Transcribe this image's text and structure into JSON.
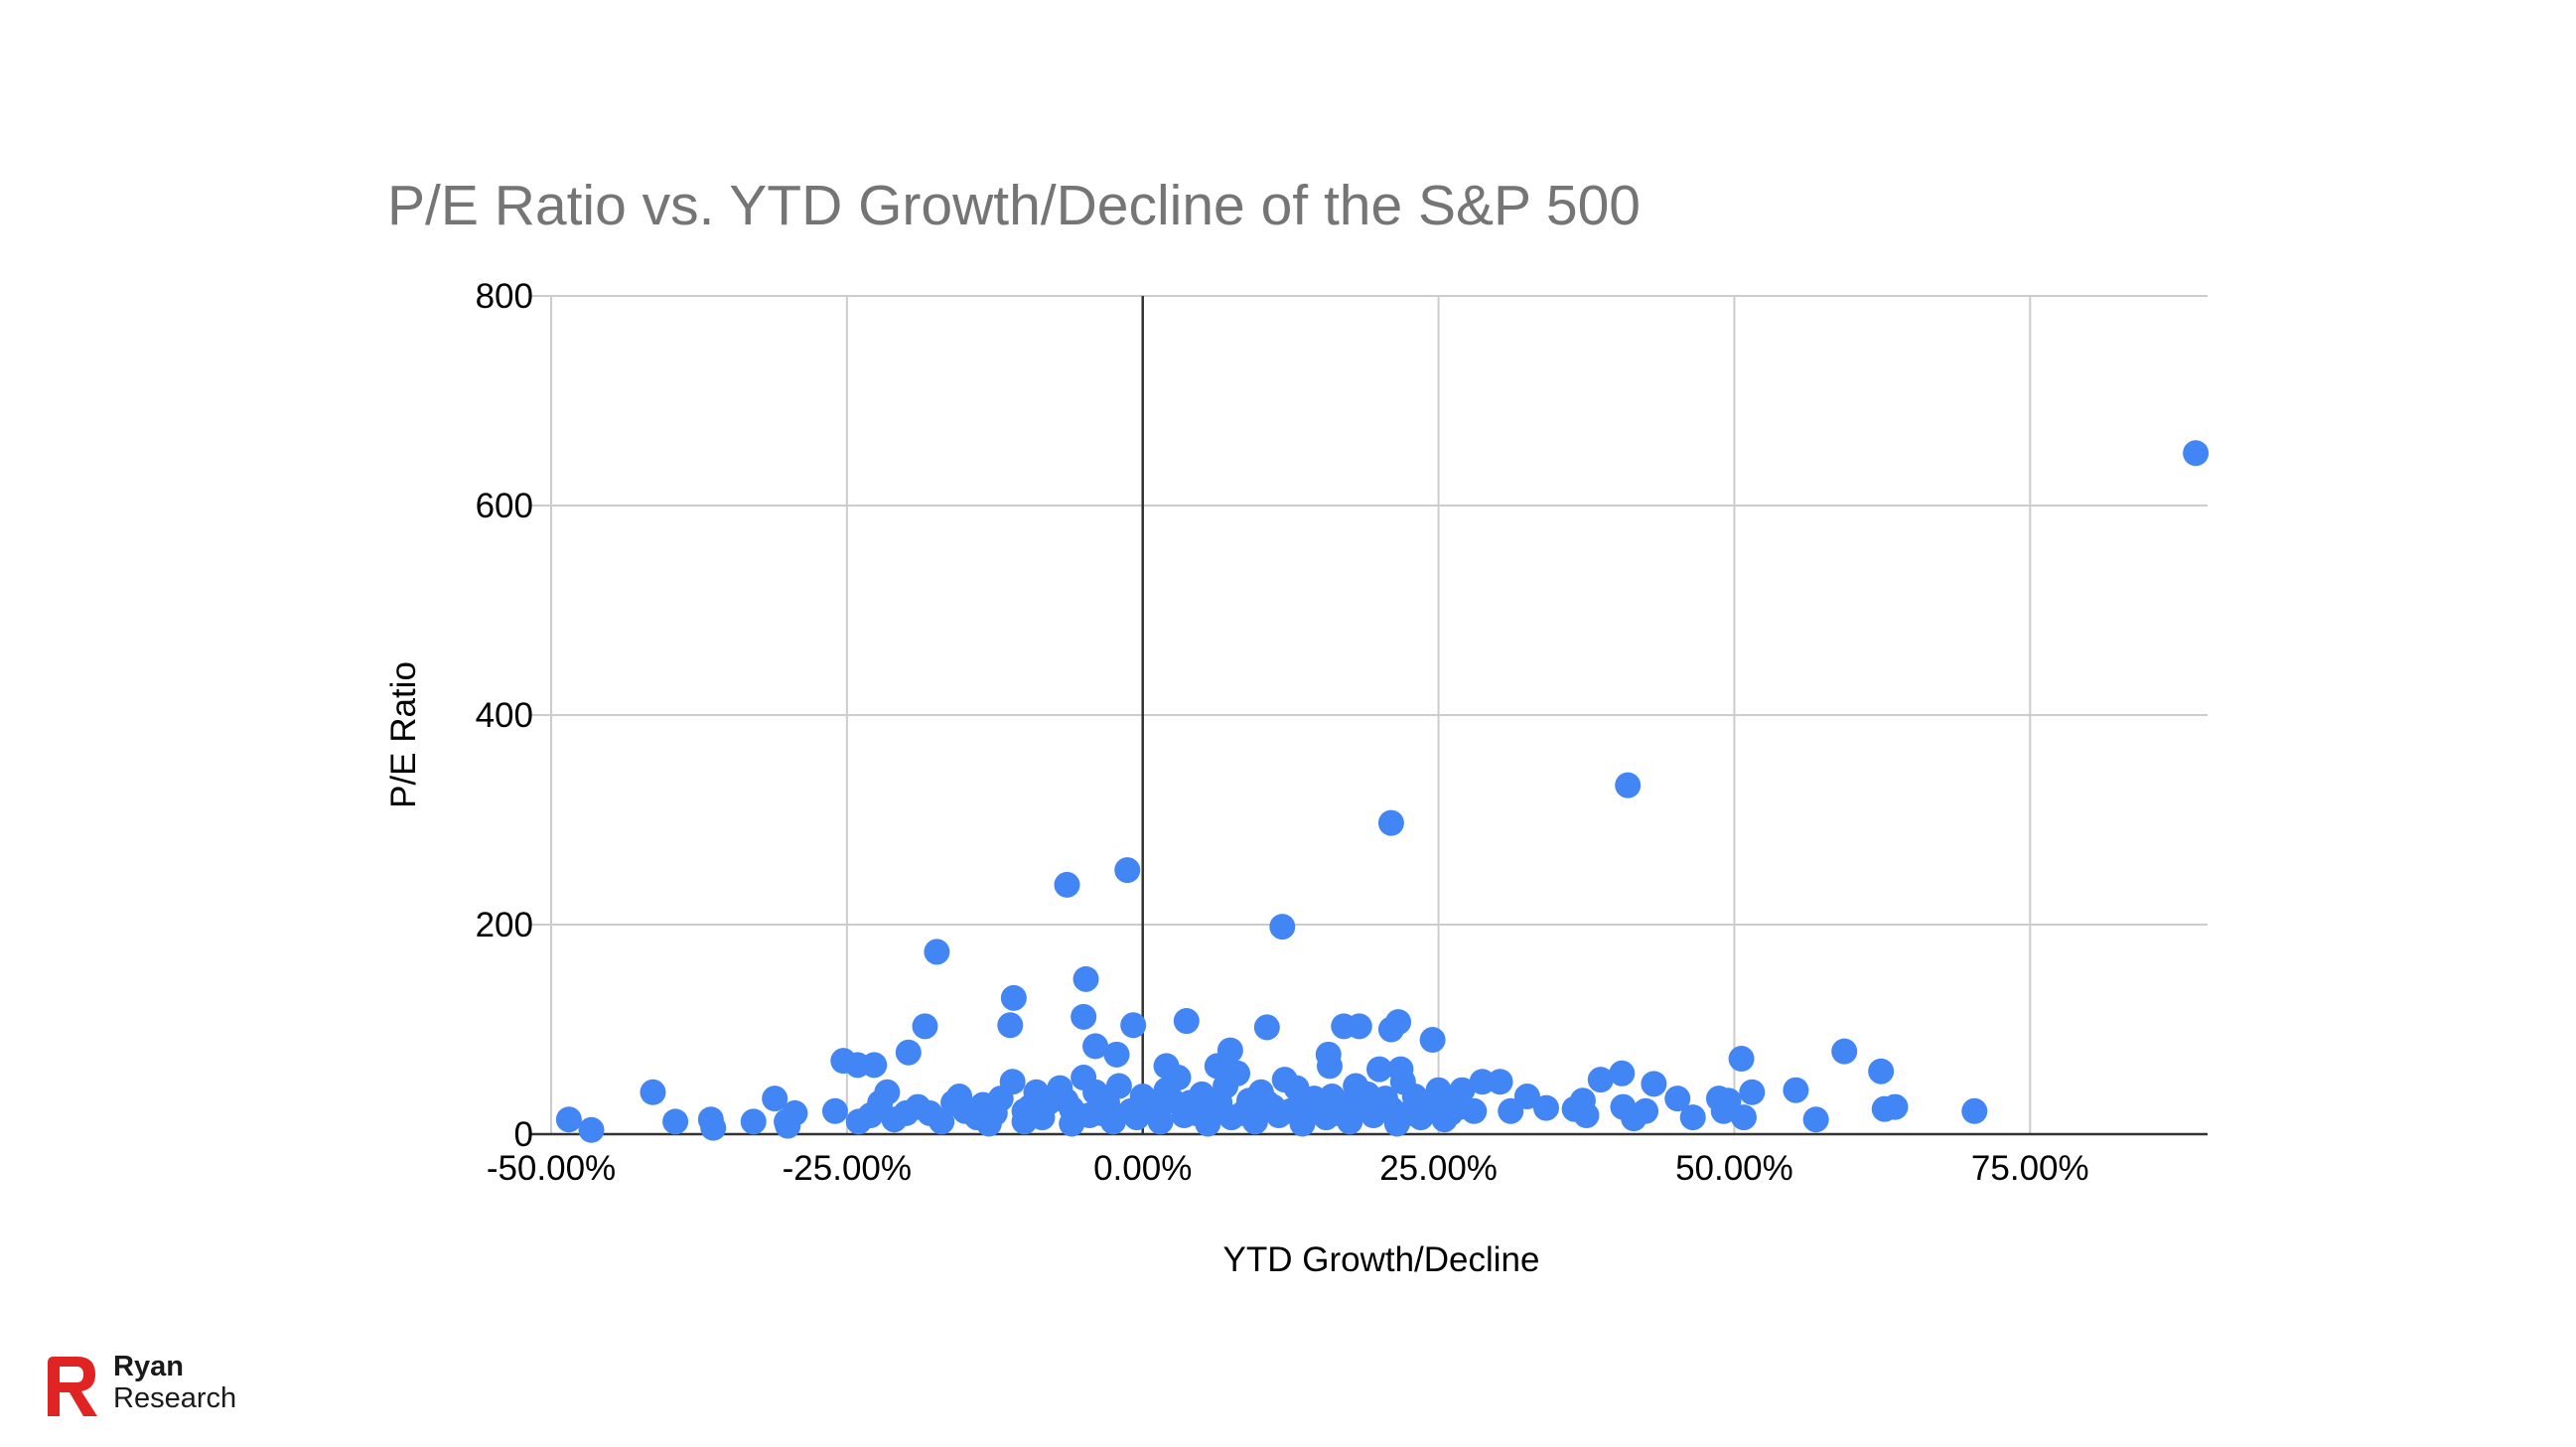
{
  "brand": {
    "line1": "Ryan",
    "line2": "Research",
    "accent_color": "#e02424"
  },
  "chart_data": {
    "type": "scatter",
    "title": "P/E Ratio vs. YTD Growth/Decline of the S&P 500",
    "xlabel": "YTD Growth/Decline",
    "ylabel": "P/E Ratio",
    "xlim": [
      -0.5,
      0.9
    ],
    "ylim": [
      0,
      800
    ],
    "x_ticks": [
      -0.5,
      -0.25,
      0,
      0.25,
      0.5,
      0.75
    ],
    "x_tick_labels": [
      "-50.00%",
      "-25.00%",
      "0.00%",
      "25.00%",
      "50.00%",
      "75.00%"
    ],
    "y_ticks": [
      0,
      200,
      400,
      600,
      800
    ],
    "y_tick_labels": [
      "0",
      "200",
      "400",
      "600",
      "800"
    ],
    "grid": true,
    "point_color": "#4285f4",
    "points": [
      [
        0.89,
        650
      ],
      [
        0.41,
        333
      ],
      [
        0.21,
        297
      ],
      [
        -0.013,
        252
      ],
      [
        -0.064,
        238
      ],
      [
        0.118,
        198
      ],
      [
        -0.174,
        174
      ],
      [
        -0.048,
        148
      ],
      [
        -0.109,
        130
      ],
      [
        -0.05,
        112
      ],
      [
        -0.112,
        104
      ],
      [
        -0.184,
        103
      ],
      [
        0.037,
        108
      ],
      [
        -0.008,
        104
      ],
      [
        0.105,
        102
      ],
      [
        0.17,
        103
      ],
      [
        0.183,
        103
      ],
      [
        0.216,
        107
      ],
      [
        0.21,
        100
      ],
      [
        0.245,
        90
      ],
      [
        -0.04,
        84
      ],
      [
        -0.022,
        76
      ],
      [
        0.074,
        80
      ],
      [
        0.157,
        76
      ],
      [
        -0.198,
        78
      ],
      [
        -0.253,
        70
      ],
      [
        -0.241,
        66
      ],
      [
        -0.227,
        66
      ],
      [
        0.02,
        65
      ],
      [
        0.063,
        65
      ],
      [
        0.158,
        65
      ],
      [
        0.2,
        62
      ],
      [
        0.218,
        62
      ],
      [
        0.506,
        72
      ],
      [
        0.593,
        79
      ],
      [
        0.624,
        60
      ],
      [
        0.405,
        58
      ],
      [
        0.387,
        52
      ],
      [
        0.432,
        48
      ],
      [
        0.287,
        50
      ],
      [
        0.302,
        50
      ],
      [
        0.552,
        42
      ],
      [
        0.515,
        40
      ],
      [
        -0.414,
        40
      ],
      [
        0.27,
        42
      ],
      [
        -0.311,
        34
      ],
      [
        0.325,
        36
      ],
      [
        0.452,
        34
      ],
      [
        0.372,
        32
      ],
      [
        0.487,
        34
      ],
      [
        0.495,
        32
      ],
      [
        0.268,
        26
      ],
      [
        0.341,
        25
      ],
      [
        0.406,
        26
      ],
      [
        0.365,
        24
      ],
      [
        0.425,
        22
      ],
      [
        0.491,
        22
      ],
      [
        0.636,
        26
      ],
      [
        0.627,
        24
      ],
      [
        0.703,
        22
      ],
      [
        0.375,
        18
      ],
      [
        0.415,
        15
      ],
      [
        0.465,
        16
      ],
      [
        0.508,
        16
      ],
      [
        0.569,
        14
      ],
      [
        0.311,
        22
      ],
      [
        -0.294,
        20
      ],
      [
        -0.26,
        22
      ],
      [
        -0.301,
        12
      ],
      [
        -0.395,
        12
      ],
      [
        -0.365,
        14
      ],
      [
        -0.329,
        12
      ],
      [
        -0.485,
        14
      ],
      [
        -0.466,
        4
      ],
      [
        -0.363,
        6
      ],
      [
        -0.3,
        8
      ],
      [
        -0.216,
        40
      ],
      [
        -0.222,
        30
      ],
      [
        -0.19,
        26
      ],
      [
        -0.18,
        20
      ],
      [
        -0.16,
        30
      ],
      [
        -0.15,
        22
      ],
      [
        -0.135,
        28
      ],
      [
        -0.12,
        34
      ],
      [
        -0.11,
        50
      ],
      [
        -0.1,
        22
      ],
      [
        -0.09,
        40
      ],
      [
        -0.08,
        30
      ],
      [
        -0.07,
        44
      ],
      [
        -0.06,
        24
      ],
      [
        -0.05,
        54
      ],
      [
        -0.04,
        40
      ],
      [
        -0.03,
        30
      ],
      [
        -0.02,
        46
      ],
      [
        -0.01,
        22
      ],
      [
        0.0,
        36
      ],
      [
        0.01,
        28
      ],
      [
        0.02,
        42
      ],
      [
        0.03,
        54
      ],
      [
        0.04,
        30
      ],
      [
        0.05,
        38
      ],
      [
        0.06,
        24
      ],
      [
        0.07,
        46
      ],
      [
        0.08,
        58
      ],
      [
        0.09,
        32
      ],
      [
        0.1,
        40
      ],
      [
        0.11,
        26
      ],
      [
        0.12,
        52
      ],
      [
        0.13,
        44
      ],
      [
        0.14,
        30
      ],
      [
        0.15,
        22
      ],
      [
        0.16,
        36
      ],
      [
        0.17,
        28
      ],
      [
        0.18,
        46
      ],
      [
        0.19,
        38
      ],
      [
        0.2,
        30
      ],
      [
        0.21,
        24
      ],
      [
        0.22,
        50
      ],
      [
        0.23,
        36
      ],
      [
        0.24,
        28
      ],
      [
        0.25,
        42
      ],
      [
        0.26,
        20
      ],
      [
        -0.24,
        12
      ],
      [
        -0.23,
        18
      ],
      [
        -0.21,
        14
      ],
      [
        -0.2,
        20
      ],
      [
        -0.17,
        12
      ],
      [
        -0.14,
        16
      ],
      [
        -0.13,
        10
      ],
      [
        -0.1,
        12
      ],
      [
        -0.085,
        16
      ],
      [
        -0.06,
        10
      ],
      [
        -0.045,
        18
      ],
      [
        -0.025,
        12
      ],
      [
        -0.005,
        16
      ],
      [
        0.015,
        12
      ],
      [
        0.035,
        18
      ],
      [
        0.055,
        10
      ],
      [
        0.075,
        16
      ],
      [
        0.095,
        12
      ],
      [
        0.115,
        18
      ],
      [
        0.135,
        10
      ],
      [
        0.155,
        16
      ],
      [
        0.175,
        12
      ],
      [
        0.195,
        18
      ],
      [
        0.215,
        10
      ],
      [
        0.235,
        16
      ],
      [
        0.255,
        14
      ],
      [
        -0.155,
        36
      ],
      [
        -0.125,
        20
      ],
      [
        -0.095,
        26
      ],
      [
        -0.065,
        32
      ],
      [
        -0.035,
        20
      ],
      [
        0.005,
        24
      ],
      [
        0.025,
        32
      ],
      [
        0.045,
        20
      ],
      [
        0.065,
        30
      ],
      [
        0.085,
        20
      ],
      [
        0.105,
        30
      ],
      [
        0.125,
        22
      ],
      [
        0.145,
        34
      ],
      [
        0.165,
        20
      ],
      [
        0.185,
        28
      ],
      [
        0.205,
        34
      ],
      [
        0.225,
        20
      ],
      [
        0.245,
        30
      ],
      [
        0.265,
        30
      ],
      [
        0.28,
        22
      ]
    ]
  }
}
